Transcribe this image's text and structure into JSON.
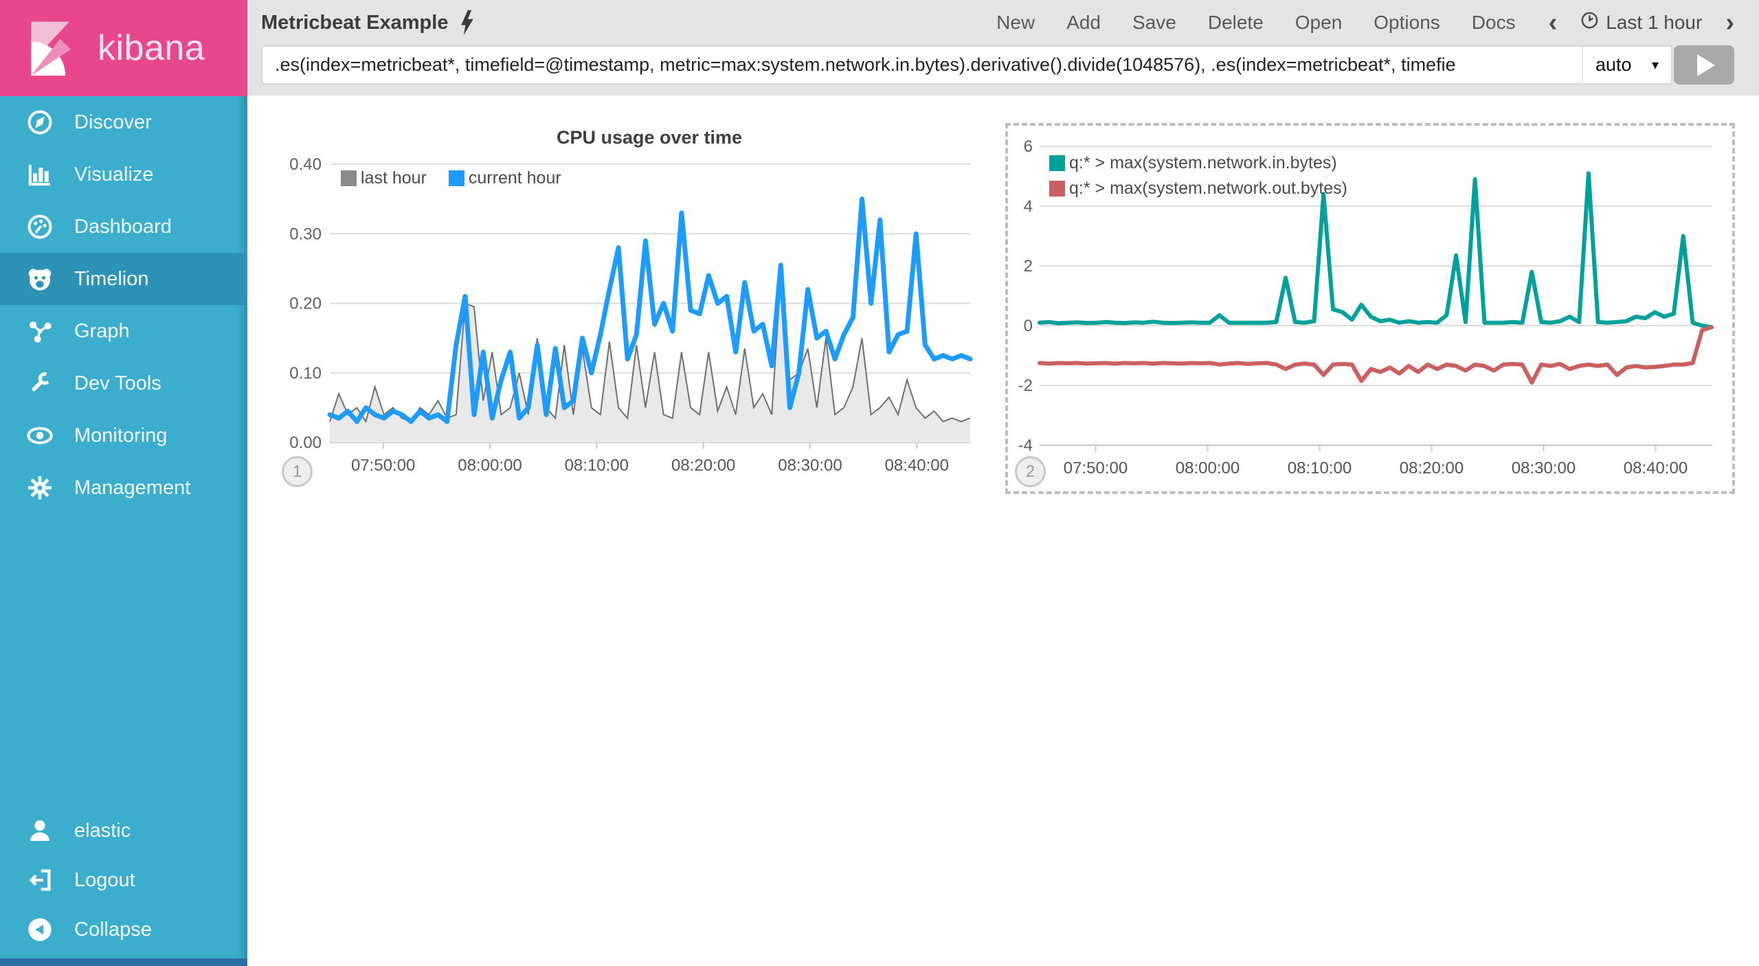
{
  "sidebar": {
    "logo_text": "kibana",
    "items": [
      {
        "label": "Discover",
        "icon": "compass-icon",
        "selected": false
      },
      {
        "label": "Visualize",
        "icon": "bar-chart-icon",
        "selected": false
      },
      {
        "label": "Dashboard",
        "icon": "dashboard-icon",
        "selected": false
      },
      {
        "label": "Timelion",
        "icon": "timelion-bear-icon",
        "selected": true
      },
      {
        "label": "Graph",
        "icon": "graph-icon",
        "selected": false
      },
      {
        "label": "Dev Tools",
        "icon": "wrench-icon",
        "selected": false
      },
      {
        "label": "Monitoring",
        "icon": "eye-icon",
        "selected": false
      },
      {
        "label": "Management",
        "icon": "gear-icon",
        "selected": false
      }
    ],
    "footer_items": [
      {
        "label": "elastic",
        "icon": "user-icon"
      },
      {
        "label": "Logout",
        "icon": "logout-icon"
      },
      {
        "label": "Collapse",
        "icon": "collapse-icon"
      }
    ]
  },
  "topbar": {
    "title": "Metricbeat Example",
    "title_icon": "lightning-icon",
    "menu": [
      "New",
      "Add",
      "Save",
      "Delete",
      "Open",
      "Options",
      "Docs"
    ],
    "back_chevron": "‹",
    "forward_chevron": "›",
    "time_range": "Last 1 hour",
    "time_icon": "clock-icon"
  },
  "query": {
    "value": ".es(index=metricbeat*, timefield=@timestamp, metric=max:system.network.in.bytes).derivative().divide(1048576), .es(index=metricbeat*, timefie",
    "interval": "auto",
    "caret": "▾",
    "run_icon": "play-icon"
  },
  "colors": {
    "brand_pink": "#E8488B",
    "sidebar_blue": "#3BAECD",
    "sidebar_selected": "#2D93B6",
    "topbar_gray": "#E4E4E4",
    "series_blue": "#1E9BFF",
    "series_gray": "#8A8A8A",
    "series_teal": "#00A09B",
    "series_red": "#CB5F5F"
  },
  "chart_data": [
    {
      "type": "area+line",
      "title": "CPU usage over time",
      "badge": "1",
      "x_range": [
        "07:45:00",
        "08:45:00"
      ],
      "x_ticks": [
        "07:50:00",
        "08:00:00",
        "08:10:00",
        "08:20:00",
        "08:30:00",
        "08:40:00"
      ],
      "ylim": [
        0,
        0.4
      ],
      "y_ticks": [
        "0.40",
        "0.30",
        "0.20",
        "0.10",
        "0.00"
      ],
      "grid": true,
      "legend_position": "top-left-horizontal",
      "series": [
        {
          "name": "last hour",
          "type": "area",
          "color": "#8A8A8A",
          "stroke": "#6F6F6F",
          "fill": "#E9E9E9",
          "width": 2,
          "values": [
            0.03,
            0.07,
            0.04,
            0.05,
            0.03,
            0.08,
            0.04,
            0.05,
            0.035,
            0.03,
            0.05,
            0.04,
            0.06,
            0.035,
            0.04,
            0.2,
            0.195,
            0.06,
            0.13,
            0.04,
            0.05,
            0.1,
            0.04,
            0.15,
            0.05,
            0.035,
            0.14,
            0.04,
            0.135,
            0.05,
            0.04,
            0.145,
            0.05,
            0.035,
            0.14,
            0.05,
            0.13,
            0.04,
            0.035,
            0.13,
            0.05,
            0.04,
            0.13,
            0.045,
            0.08,
            0.04,
            0.135,
            0.05,
            0.07,
            0.04,
            0.24,
            0.09,
            0.1,
            0.135,
            0.05,
            0.15,
            0.04,
            0.05,
            0.08,
            0.15,
            0.04,
            0.05,
            0.065,
            0.04,
            0.09,
            0.05,
            0.035,
            0.045,
            0.03,
            0.035,
            0.03,
            0.035
          ]
        },
        {
          "name": "current hour",
          "type": "line",
          "color": "#1E9BFF",
          "stroke": "#1E9BFF",
          "width": 7,
          "values": [
            0.04,
            0.035,
            0.045,
            0.03,
            0.05,
            0.04,
            0.035,
            0.045,
            0.04,
            0.03,
            0.045,
            0.035,
            0.04,
            0.03,
            0.14,
            0.21,
            0.04,
            0.13,
            0.035,
            0.09,
            0.13,
            0.035,
            0.05,
            0.14,
            0.04,
            0.135,
            0.05,
            0.06,
            0.15,
            0.1,
            0.155,
            0.22,
            0.28,
            0.12,
            0.155,
            0.29,
            0.17,
            0.2,
            0.16,
            0.33,
            0.19,
            0.185,
            0.24,
            0.2,
            0.21,
            0.13,
            0.23,
            0.16,
            0.17,
            0.11,
            0.255,
            0.05,
            0.1,
            0.22,
            0.15,
            0.16,
            0.12,
            0.155,
            0.18,
            0.35,
            0.2,
            0.32,
            0.13,
            0.155,
            0.16,
            0.3,
            0.14,
            0.12,
            0.125,
            0.12,
            0.125,
            0.12
          ]
        }
      ]
    },
    {
      "type": "line",
      "title": "",
      "badge": "2",
      "x_range": [
        "07:45:00",
        "08:45:00"
      ],
      "x_ticks": [
        "07:50:00",
        "08:00:00",
        "08:10:00",
        "08:20:00",
        "08:30:00",
        "08:40:00"
      ],
      "ylim": [
        -4,
        6
      ],
      "y_ticks": [
        "6",
        "4",
        "2",
        "0",
        "-2",
        "-4"
      ],
      "grid": true,
      "legend_position": "top-left-vertical",
      "selected": true,
      "series": [
        {
          "name": "q:* > max(system.network.in.bytes)",
          "type": "line",
          "color": "#00A09B",
          "stroke": "#00A09B",
          "width": 6,
          "values": [
            0.1,
            0.12,
            0.08,
            0.1,
            0.11,
            0.09,
            0.1,
            0.12,
            0.1,
            0.09,
            0.11,
            0.1,
            0.13,
            0.1,
            0.09,
            0.1,
            0.11,
            0.1,
            0.1,
            0.35,
            0.1,
            0.1,
            0.1,
            0.1,
            0.1,
            0.12,
            1.6,
            0.12,
            0.1,
            0.15,
            4.4,
            0.55,
            0.45,
            0.2,
            0.7,
            0.3,
            0.15,
            0.2,
            0.1,
            0.15,
            0.1,
            0.12,
            0.1,
            0.35,
            2.35,
            0.12,
            4.9,
            0.1,
            0.1,
            0.1,
            0.12,
            0.1,
            1.8,
            0.12,
            0.1,
            0.15,
            0.3,
            0.12,
            5.1,
            0.12,
            0.1,
            0.12,
            0.15,
            0.3,
            0.25,
            0.45,
            0.3,
            0.4,
            3.0,
            0.1,
            0.0,
            -0.05
          ]
        },
        {
          "name": "q:* > max(system.network.out.bytes)",
          "type": "line",
          "color": "#CB5F5F",
          "stroke": "#CB5F5F",
          "width": 6,
          "values": [
            -1.25,
            -1.27,
            -1.25,
            -1.26,
            -1.25,
            -1.27,
            -1.26,
            -1.25,
            -1.27,
            -1.25,
            -1.26,
            -1.25,
            -1.27,
            -1.25,
            -1.26,
            -1.27,
            -1.25,
            -1.26,
            -1.25,
            -1.3,
            -1.27,
            -1.25,
            -1.28,
            -1.26,
            -1.25,
            -1.3,
            -1.45,
            -1.3,
            -1.27,
            -1.3,
            -1.65,
            -1.3,
            -1.28,
            -1.3,
            -1.85,
            -1.45,
            -1.55,
            -1.4,
            -1.6,
            -1.35,
            -1.55,
            -1.3,
            -1.45,
            -1.3,
            -1.35,
            -1.5,
            -1.3,
            -1.35,
            -1.5,
            -1.3,
            -1.28,
            -1.3,
            -1.9,
            -1.3,
            -1.35,
            -1.28,
            -1.45,
            -1.35,
            -1.3,
            -1.35,
            -1.3,
            -1.65,
            -1.4,
            -1.35,
            -1.4,
            -1.38,
            -1.35,
            -1.3,
            -1.3,
            -1.25,
            -0.15,
            -0.05
          ]
        }
      ]
    }
  ]
}
